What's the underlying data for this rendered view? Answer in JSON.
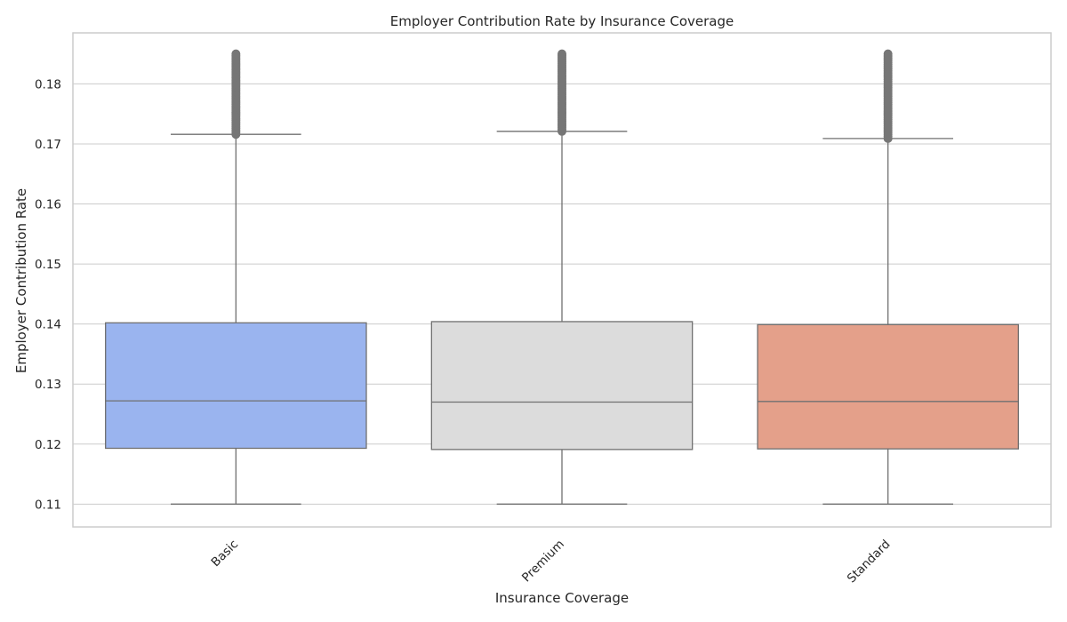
{
  "chart_data": {
    "type": "box",
    "title": "Employer Contribution Rate by Insurance Coverage",
    "xlabel": "Insurance Coverage",
    "ylabel": "Employer Contribution Rate",
    "ylim": [
      0.1062,
      0.1885
    ],
    "yticks": [
      0.11,
      0.12,
      0.13,
      0.14,
      0.15,
      0.16,
      0.17,
      0.18
    ],
    "ytick_labels": [
      "0.11",
      "0.12",
      "0.13",
      "0.14",
      "0.15",
      "0.16",
      "0.17",
      "0.18"
    ],
    "grid": "horizontal",
    "categories": [
      "Basic",
      "Premium",
      "Standard"
    ],
    "boxes": [
      {
        "category": "Basic",
        "color": "#9ab4ef",
        "whisker_low": 0.11,
        "q1": 0.1193,
        "median": 0.1272,
        "q3": 0.1402,
        "whisker_high": 0.1716,
        "outliers_range": [
          0.1716,
          0.185
        ]
      },
      {
        "category": "Premium",
        "color": "#dcdcdc",
        "whisker_low": 0.11,
        "q1": 0.1191,
        "median": 0.127,
        "q3": 0.1404,
        "whisker_high": 0.1721,
        "outliers_range": [
          0.1721,
          0.185
        ]
      },
      {
        "category": "Standard",
        "color": "#e4a08a",
        "whisker_low": 0.11,
        "q1": 0.1192,
        "median": 0.1271,
        "q3": 0.1399,
        "whisker_high": 0.1709,
        "outliers_range": [
          0.1709,
          0.185
        ]
      }
    ]
  }
}
